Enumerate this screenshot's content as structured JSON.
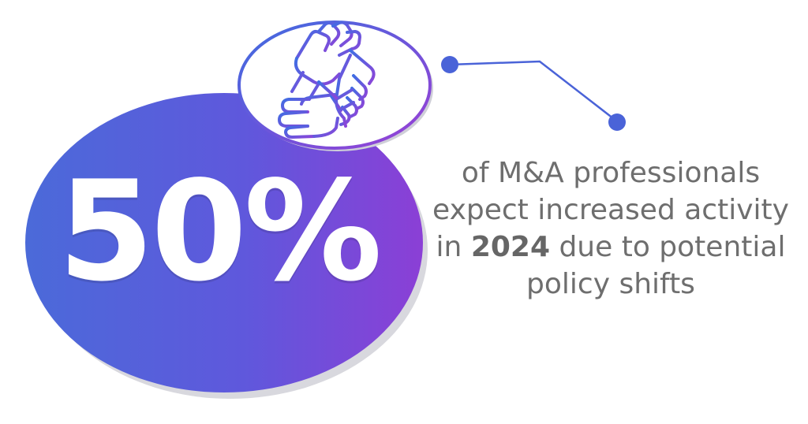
{
  "stat": {
    "value": "50%"
  },
  "description": {
    "before_year": "of M&A professionals expect increased activity in ",
    "year": "2024",
    "after_year": " due to potential policy shifts"
  },
  "icon": {
    "name": "teamwork-hands-icon"
  },
  "colors": {
    "gradient_start": "#4a63d8",
    "gradient_end": "#8a3fd6",
    "connector": "#4a63d8",
    "text": "#6e6e6e",
    "shadow": "#d9d9de"
  }
}
